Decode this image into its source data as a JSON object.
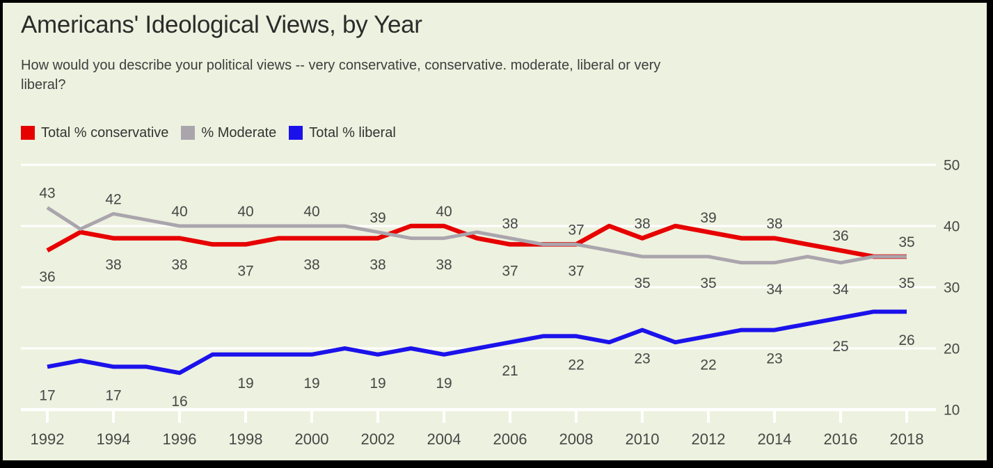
{
  "chart_data": {
    "type": "line",
    "title": "Americans' Ideological Views, by Year",
    "subtitle": "How would you describe your political views -- very conservative, conservative. moderate, liberal or very\nliberal?",
    "x": [
      1992,
      1993,
      1994,
      1995,
      1996,
      1997,
      1998,
      1999,
      2000,
      2001,
      2002,
      2003,
      2004,
      2005,
      2006,
      2007,
      2008,
      2009,
      2010,
      2011,
      2012,
      2013,
      2014,
      2015,
      2016,
      2017,
      2018
    ],
    "series": [
      {
        "key": "conservative",
        "name": "Total % conservative",
        "color": "#e60000",
        "values": [
          36,
          39,
          38,
          38,
          38,
          37,
          37,
          38,
          38,
          38,
          38,
          40,
          40,
          38,
          37,
          37,
          37,
          40,
          38,
          40,
          39,
          38,
          38,
          37,
          36,
          35,
          35
        ]
      },
      {
        "key": "moderate",
        "name": "% Moderate",
        "color": "#aaa5ad",
        "values": [
          43,
          39.5,
          42,
          41,
          40,
          40,
          40,
          40,
          40,
          40,
          39,
          38,
          38,
          39,
          38,
          37,
          37,
          36,
          35,
          35,
          35,
          34,
          34,
          35,
          34,
          35,
          35
        ]
      },
      {
        "key": "liberal",
        "name": "Total % liberal",
        "color": "#1b12eb",
        "values": [
          17,
          18,
          17,
          17,
          16,
          19,
          19,
          19,
          19,
          20,
          19,
          20,
          19,
          20,
          21,
          22,
          22,
          21,
          23,
          21,
          22,
          23,
          23,
          24,
          25,
          26,
          26
        ]
      }
    ],
    "label_years": [
      1992,
      1994,
      1996,
      1998,
      2000,
      2002,
      2004,
      2006,
      2008,
      2010,
      2012,
      2014,
      2016,
      2018
    ],
    "xticks": [
      1992,
      1994,
      1996,
      1998,
      2000,
      2002,
      2004,
      2006,
      2008,
      2010,
      2012,
      2014,
      2016,
      2018
    ],
    "yticks": [
      10,
      20,
      30,
      40,
      50
    ],
    "ylim": [
      10,
      50
    ],
    "xlabel": "",
    "ylabel": "",
    "grid": "horizontal",
    "legend_position": "top-left",
    "colors": {
      "background": "#edf1df",
      "gridline": "#ffffff",
      "text": "#474747",
      "frame_border": "#000000"
    }
  }
}
